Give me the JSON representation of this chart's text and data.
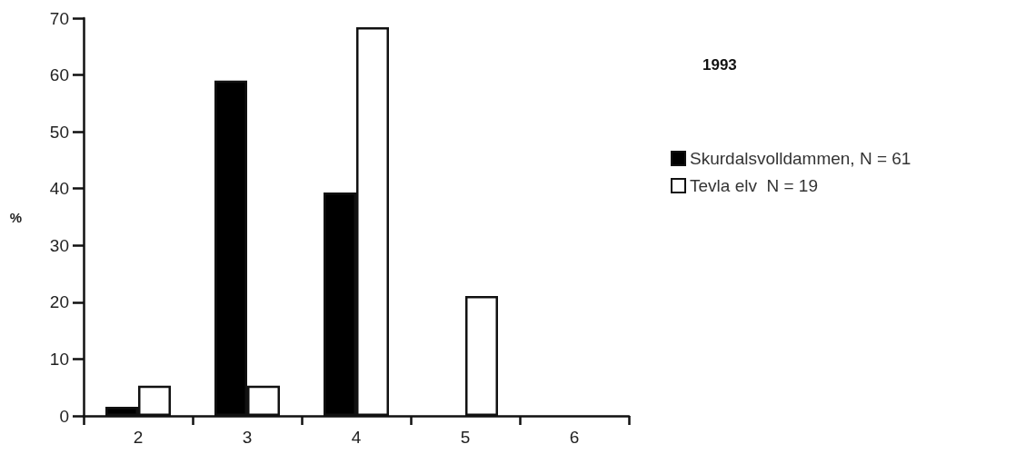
{
  "chart_data": {
    "type": "bar",
    "title": "1993",
    "ylabel": "%",
    "categories": [
      "2",
      "3",
      "4",
      "5",
      "6"
    ],
    "series": [
      {
        "name": "Skurdalsvolldammen, N = 61",
        "color": "#000000",
        "values": [
          1.6,
          59,
          39.3,
          0,
          0
        ]
      },
      {
        "name": "Tevla elv  N = 19",
        "color": "#ffffff",
        "values": [
          5.3,
          5.3,
          68.4,
          21.1,
          0
        ]
      }
    ],
    "ylim": [
      0,
      70
    ],
    "yticks": [
      0,
      10,
      20,
      30,
      40,
      50,
      60,
      70
    ],
    "grid": false,
    "legend": "right"
  }
}
